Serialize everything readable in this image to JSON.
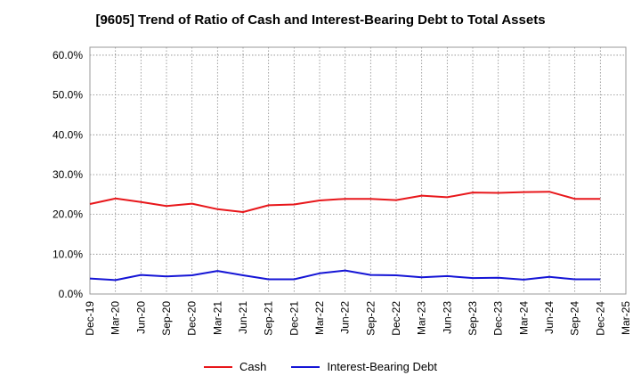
{
  "chart_data": {
    "type": "line",
    "title": "[9605]  Trend of Ratio of Cash and Interest-Bearing Debt to Total Assets",
    "xlabel": "",
    "ylabel": "",
    "ylim": [
      0,
      0.62
    ],
    "y_ticks": [
      0,
      0.1,
      0.2,
      0.3,
      0.4,
      0.5,
      0.6
    ],
    "y_tick_labels": [
      "0.0%",
      "10.0%",
      "20.0%",
      "30.0%",
      "40.0%",
      "50.0%",
      "60.0%"
    ],
    "x_tick_labels": [
      "Dec-19",
      "Mar-20",
      "Jun-20",
      "Sep-20",
      "Dec-20",
      "Mar-21",
      "Jun-21",
      "Sep-21",
      "Dec-21",
      "Mar-22",
      "Jun-22",
      "Sep-22",
      "Dec-22",
      "Mar-23",
      "Jun-23",
      "Sep-23",
      "Dec-23",
      "Mar-24",
      "Jun-24",
      "Sep-24",
      "Dec-24",
      "Mar-25"
    ],
    "categories": [
      "Dec-19",
      "Mar-20",
      "Jun-20",
      "Sep-20",
      "Dec-20",
      "Mar-21",
      "Jun-21",
      "Sep-21",
      "Dec-21",
      "Mar-22",
      "Jun-22",
      "Sep-22",
      "Dec-22",
      "Mar-23",
      "Jun-23",
      "Sep-23",
      "Dec-23",
      "Mar-24",
      "Jun-24",
      "Sep-24",
      "Dec-24"
    ],
    "grid": true,
    "legend_position": "bottom",
    "series": [
      {
        "name": "Cash",
        "color": "#e8171b",
        "values": [
          0.226,
          0.24,
          0.231,
          0.221,
          0.227,
          0.213,
          0.206,
          0.223,
          0.225,
          0.235,
          0.239,
          0.239,
          0.236,
          0.247,
          0.243,
          0.255,
          0.254,
          0.256,
          0.257,
          0.239,
          0.239
        ]
      },
      {
        "name": "Interest-Bearing Debt",
        "color": "#1515d6",
        "values": [
          0.039,
          0.035,
          0.048,
          0.044,
          0.047,
          0.058,
          0.047,
          0.037,
          0.037,
          0.052,
          0.059,
          0.048,
          0.047,
          0.042,
          0.045,
          0.04,
          0.041,
          0.036,
          0.043,
          0.037,
          0.037
        ]
      }
    ]
  }
}
